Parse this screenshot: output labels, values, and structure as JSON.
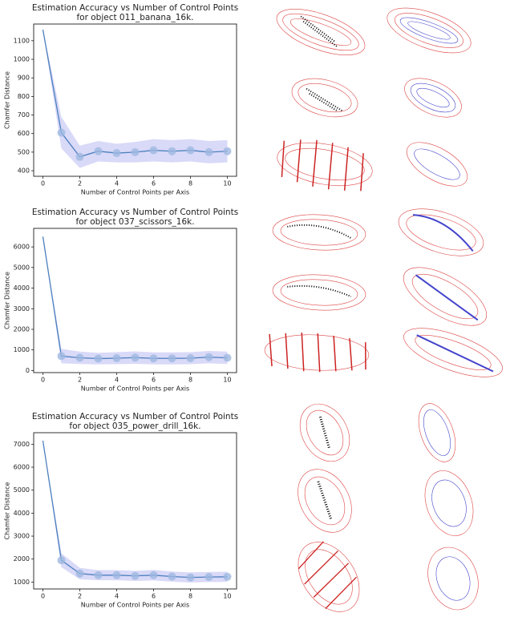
{
  "chart_data": [
    {
      "type": "line",
      "title": [
        "Estimation Accuracy vs Number of Control Points",
        "for object 011_banana_16k."
      ],
      "xlabel": "Number of Control Points per Axis",
      "ylabel": "Chamfer Distance",
      "x": [
        0,
        1,
        2,
        3,
        4,
        5,
        6,
        7,
        8,
        9,
        10
      ],
      "values": [
        1160,
        605,
        475,
        505,
        495,
        500,
        510,
        505,
        510,
        500,
        505
      ],
      "errors": [
        0,
        85,
        60,
        55,
        50,
        55,
        60,
        60,
        60,
        60,
        60
      ],
      "color": "#4c7fbf",
      "band_color": "#c9c9f5",
      "xlim": [
        -0.5,
        10.5
      ],
      "ylim": [
        370,
        1190
      ],
      "xticks": [
        0,
        2,
        4,
        6,
        8,
        10
      ],
      "yticks": [
        400,
        500,
        600,
        700,
        800,
        900,
        1000,
        1100
      ]
    },
    {
      "type": "line",
      "title": [
        "Estimation Accuracy vs Number of Control Points",
        "for object 037_scissors_16k."
      ],
      "xlabel": "Number of Control Points per Axis",
      "ylabel": "Chamfer Distance",
      "x": [
        0,
        1,
        2,
        3,
        4,
        5,
        6,
        7,
        8,
        9,
        10
      ],
      "values": [
        6500,
        700,
        620,
        580,
        600,
        630,
        590,
        590,
        600,
        650,
        620
      ],
      "errors": [
        0,
        350,
        300,
        280,
        290,
        300,
        290,
        290,
        290,
        300,
        300
      ],
      "color": "#4c7fbf",
      "band_color": "#c9c9f5",
      "xlim": [
        -0.5,
        10.5
      ],
      "ylim": [
        -100,
        6900
      ],
      "xticks": [
        0,
        2,
        4,
        6,
        8,
        10
      ],
      "yticks": [
        0,
        1000,
        2000,
        3000,
        4000,
        5000,
        6000
      ]
    },
    {
      "type": "line",
      "title": [
        "Estimation Accuracy vs Number of Control Points",
        "for object 035_power_drill_16k."
      ],
      "xlabel": "Number of Control Points per Axis",
      "ylabel": "Chamfer Distance",
      "x": [
        0,
        1,
        2,
        3,
        4,
        5,
        6,
        7,
        8,
        9,
        10
      ],
      "values": [
        7150,
        1950,
        1370,
        1300,
        1300,
        1270,
        1300,
        1240,
        1200,
        1220,
        1230
      ],
      "errors": [
        0,
        300,
        250,
        220,
        220,
        220,
        230,
        220,
        220,
        220,
        220
      ],
      "color": "#4c7fbf",
      "band_color": "#c9c9f5",
      "xlim": [
        -0.5,
        10.5
      ],
      "ylim": [
        700,
        7500
      ],
      "xticks": [
        0,
        2,
        4,
        6,
        8,
        10
      ],
      "yticks": [
        1000,
        2000,
        3000,
        4000,
        5000,
        6000,
        7000
      ]
    }
  ]
}
